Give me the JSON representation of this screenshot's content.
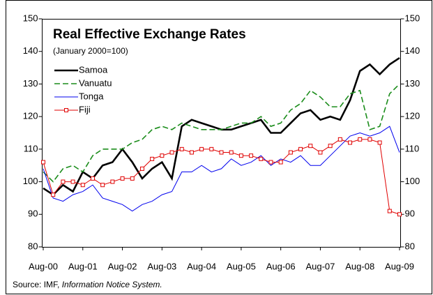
{
  "chart_data": {
    "type": "line",
    "title": "Real Effective Exchange Rates",
    "subtitle": "(January 2000=100)",
    "source": {
      "prefix": "Source: IMF,",
      "emphasis": "Information Notice System."
    },
    "categories": [
      "Aug-00",
      null,
      null,
      null,
      "Aug-01",
      null,
      null,
      null,
      "Aug-02",
      null,
      null,
      null,
      "Aug-03",
      null,
      null,
      null,
      "Aug-04",
      null,
      null,
      null,
      "Aug-05",
      null,
      null,
      null,
      "Aug-06",
      null,
      null,
      null,
      "Aug-07",
      null,
      null,
      null,
      "Aug-08",
      null,
      null,
      null,
      "Aug-09"
    ],
    "ylim": [
      80,
      150
    ],
    "yticks": [
      80,
      90,
      100,
      110,
      120,
      130,
      140,
      150
    ],
    "right_axis_mirror": true,
    "series": [
      {
        "name": "Samoa",
        "color": "#000000",
        "width": 2.6,
        "line_style": "solid",
        "values": [
          98,
          96,
          99,
          97,
          103,
          101,
          105,
          106,
          110,
          106,
          101,
          104,
          106,
          101,
          117,
          119,
          118,
          117,
          116,
          116,
          117,
          118,
          119,
          115,
          115,
          118,
          121,
          122,
          119,
          120,
          119,
          125,
          134,
          136,
          133,
          136,
          138
        ]
      },
      {
        "name": "Vanuatu",
        "color": "#1a8c1a",
        "width": 1.6,
        "line_style": "dashed",
        "values": [
          103,
          100,
          104,
          105,
          103,
          108,
          110,
          110,
          110,
          112,
          113,
          116,
          117,
          116,
          118,
          117,
          116,
          116,
          116,
          117,
          118,
          118,
          120,
          117,
          118,
          122,
          124,
          128,
          126,
          123,
          123,
          127,
          128,
          116,
          117,
          127,
          130
        ]
      },
      {
        "name": "Tonga",
        "color": "#0000ee",
        "width": 1,
        "line_style": "solid",
        "values": [
          104,
          95,
          94,
          96,
          97,
          99,
          95,
          94,
          93,
          91,
          93,
          94,
          96,
          97,
          103,
          103,
          105,
          103,
          104,
          107,
          105,
          106,
          108,
          105,
          107,
          106,
          108,
          105,
          105,
          108,
          111,
          114,
          115,
          114,
          115,
          117,
          109
        ]
      },
      {
        "name": "Fiji",
        "color": "#e00000",
        "width": 1,
        "line_style": "solid",
        "marker": "square",
        "values": [
          106,
          96,
          100,
          100,
          99,
          101,
          99,
          100,
          101,
          101,
          104,
          107,
          108,
          109,
          110,
          109,
          110,
          110,
          109,
          109,
          108,
          108,
          107,
          106,
          106,
          109,
          110,
          111,
          109,
          111,
          113,
          112,
          113,
          113,
          112,
          91,
          90
        ]
      }
    ]
  }
}
